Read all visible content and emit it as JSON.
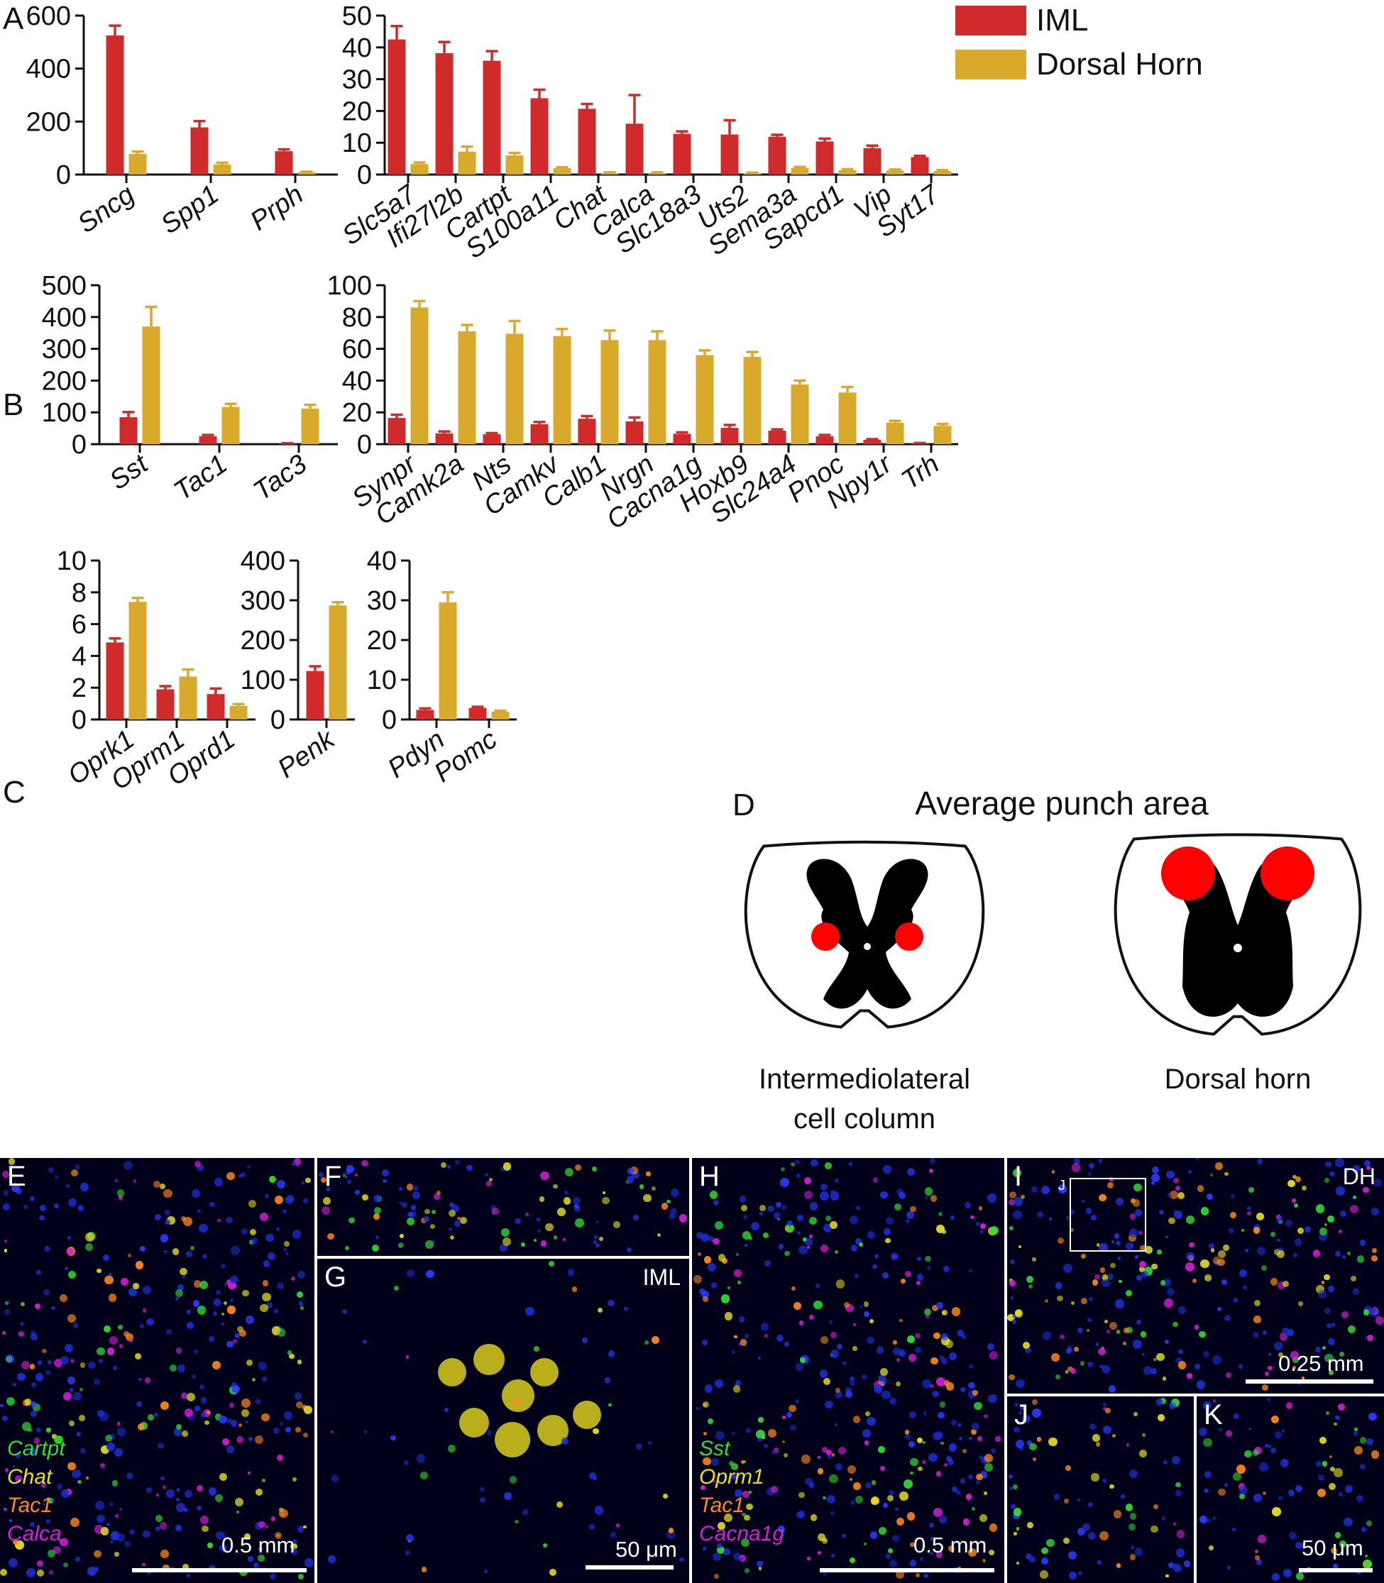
{
  "legend": {
    "entries": [
      {
        "name": "IML",
        "color": "#d02a2a"
      },
      {
        "name": "Dorsal Horn",
        "color": "#d9a92b"
      }
    ]
  },
  "chart_data": [
    {
      "panel": "A",
      "type": "bar",
      "categories": [
        "Sncg",
        "Spp1",
        "Prph"
      ],
      "series": [
        {
          "name": "IML",
          "values": [
            525,
            178,
            88
          ],
          "err": [
            37,
            24,
            7
          ]
        },
        {
          "name": "Dorsal Horn",
          "values": [
            78,
            38,
            9
          ],
          "err": [
            9,
            7,
            2
          ]
        }
      ],
      "ylim": [
        0,
        600
      ],
      "yticks": [
        0,
        200,
        400,
        600
      ]
    },
    {
      "panel": "",
      "type": "bar",
      "categories": [
        "Slc5a7",
        "Ifi27l2b",
        "Cartpt",
        "S100a11",
        "Chat",
        "Calca",
        "Slc18a3",
        "Uts2",
        "Sema3a",
        "Sapcd1",
        "Vip",
        "Syt17"
      ],
      "series": [
        {
          "name": "IML",
          "values": [
            42.5,
            38.2,
            35.8,
            24,
            20.7,
            16,
            12.8,
            12.6,
            11.9,
            10.4,
            8.3,
            5.5
          ],
          "err": [
            4.2,
            3.5,
            3,
            2.7,
            1.5,
            9,
            0.8,
            4.5,
            0.6,
            0.9,
            0.8,
            0.4
          ]
        },
        {
          "name": "Dorsal Horn",
          "values": [
            3.3,
            7.2,
            6,
            2,
            0.5,
            0.5,
            0,
            0.4,
            2.1,
            1.4,
            1.3,
            1.1
          ],
          "err": [
            0.5,
            1.6,
            0.8,
            0.3,
            0.2,
            0.2,
            0,
            0.2,
            0.3,
            0.3,
            0.3,
            0.3
          ]
        }
      ],
      "ylim": [
        0,
        50
      ],
      "yticks": [
        0,
        10,
        20,
        30,
        40,
        50
      ]
    },
    {
      "panel": "B",
      "type": "bar",
      "categories": [
        "Sst",
        "Tac1",
        "Tac3"
      ],
      "series": [
        {
          "name": "IML",
          "values": [
            85,
            25,
            2
          ],
          "err": [
            16,
            4,
            1
          ]
        },
        {
          "name": "Dorsal Horn",
          "values": [
            370,
            117,
            112
          ],
          "err": [
            62,
            10,
            12
          ]
        }
      ],
      "ylim": [
        0,
        500
      ],
      "yticks": [
        0,
        100,
        200,
        300,
        400,
        500
      ]
    },
    {
      "panel": "",
      "type": "bar",
      "categories": [
        "Synpr",
        "Camk2a",
        "Nts",
        "Camkv",
        "Calb1",
        "Nrgn",
        "Cacna1g",
        "Hoxb9",
        "Slc24a4",
        "Pnoc",
        "Npy1r",
        "Trh"
      ],
      "series": [
        {
          "name": "IML",
          "values": [
            16.5,
            6.8,
            6.2,
            12.5,
            16,
            14.3,
            6.5,
            10.3,
            8.5,
            5,
            2.8,
            0.5
          ],
          "err": [
            2,
            1.2,
            0.8,
            1.5,
            1.7,
            2.5,
            1,
            1.8,
            0.8,
            0.8,
            0.4,
            0.2
          ]
        },
        {
          "name": "Dorsal Horn",
          "values": [
            86,
            71,
            69.5,
            68,
            65.5,
            65.5,
            56,
            55,
            37.5,
            32.5,
            13.5,
            11.5
          ],
          "err": [
            4,
            4,
            8,
            4.5,
            6,
            5.5,
            3,
            3,
            2.5,
            3.5,
            1.2,
            1.2
          ]
        }
      ],
      "ylim": [
        0,
        100
      ],
      "yticks": [
        0,
        20,
        40,
        60,
        80,
        100
      ]
    },
    {
      "panel": "C",
      "type": "bar",
      "categories": [
        "Oprk1",
        "Oprm1",
        "Oprd1"
      ],
      "series": [
        {
          "name": "IML",
          "values": [
            4.85,
            1.9,
            1.6
          ],
          "err": [
            0.25,
            0.2,
            0.35
          ]
        },
        {
          "name": "Dorsal Horn",
          "values": [
            7.4,
            2.7,
            0.85
          ],
          "err": [
            0.25,
            0.45,
            0.12
          ]
        }
      ],
      "ylim": [
        0,
        10
      ],
      "yticks": [
        0,
        2,
        4,
        6,
        8,
        10
      ]
    },
    {
      "panel": "",
      "type": "bar",
      "categories": [
        "Penk"
      ],
      "series": [
        {
          "name": "IML",
          "values": [
            122
          ],
          "err": [
            12
          ]
        },
        {
          "name": "Dorsal Horn",
          "values": [
            287
          ],
          "err": [
            8
          ]
        }
      ],
      "ylim": [
        0,
        400
      ],
      "yticks": [
        0,
        100,
        200,
        300,
        400
      ]
    },
    {
      "panel": "",
      "type": "bar",
      "categories": [
        "Pdyn",
        "Pomc"
      ],
      "series": [
        {
          "name": "IML",
          "values": [
            2.4,
            2.9
          ],
          "err": [
            0.4,
            0.3
          ]
        },
        {
          "name": "Dorsal Horn",
          "values": [
            29.5,
            2
          ],
          "err": [
            2.5,
            0.2
          ]
        }
      ],
      "ylim": [
        0,
        40
      ],
      "yticks": [
        0,
        10,
        20,
        30,
        40
      ]
    }
  ],
  "diagram": {
    "panel": "D",
    "title": "Average punch area",
    "left_caption": [
      "Intermediolateral",
      "cell column"
    ],
    "right_caption": "Dorsal horn",
    "punch_color": "#ff0000"
  },
  "micrographs": {
    "E": {
      "label": "E",
      "scalebar": "0.5 mm",
      "legend": [
        {
          "text": "Cartpt",
          "color": "#33dd33"
        },
        {
          "text": "Chat",
          "color": "#e8e020"
        },
        {
          "text": "Tac1",
          "color": "#ff8a1a"
        },
        {
          "text": "Calca",
          "color": "#d81fd8"
        }
      ]
    },
    "F": {
      "label": "F"
    },
    "G": {
      "label": "G",
      "tag": "IML",
      "scalebar": "50 μm"
    },
    "H": {
      "label": "H",
      "scalebar": "0.5 mm",
      "legend": [
        {
          "text": "Sst",
          "color": "#33dd33"
        },
        {
          "text": "Oprm1",
          "color": "#e8e020"
        },
        {
          "text": "Tac1",
          "color": "#ff8a1a"
        },
        {
          "text": "Cacna1g",
          "color": "#d81fd8"
        }
      ]
    },
    "I": {
      "label": "I",
      "tag": "DH",
      "inset": "J",
      "scalebar": "0.25 mm"
    },
    "J": {
      "label": "J"
    },
    "K": {
      "label": "K",
      "scalebar": "50 μm"
    }
  }
}
